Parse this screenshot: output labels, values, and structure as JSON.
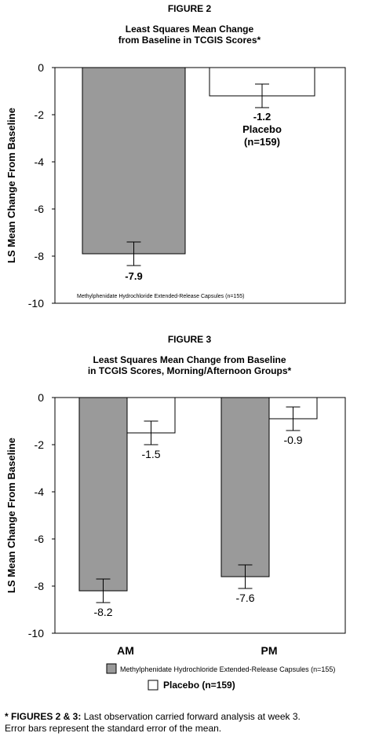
{
  "figure2": {
    "label": "FIGURE 2",
    "title_line1": "Least Squares Mean Change",
    "title_line2": "from Baseline in TCGIS Scores*"
  },
  "figure3": {
    "label": "FIGURE 3",
    "title_line1": "Least Squares Mean Change from Baseline",
    "title_line2": "in TCGIS Scores, Morning/Afternoon Groups*"
  },
  "footnote": {
    "prefix": "* FIGURES 2 & 3:",
    "line1_rest": " Last observation carried forward analysis at week 3.",
    "line2": "Error bars represent the standard error of the mean."
  },
  "colors": {
    "drug": "#9a9a9a",
    "placebo": "#ffffff",
    "stroke": "#000000"
  },
  "chart_data": [
    {
      "type": "bar",
      "title": "Least Squares Mean Change from Baseline in TCGIS Scores*",
      "ylabel": "LS Mean Change From Baseline",
      "ylim": [
        -10,
        0
      ],
      "yticks": [
        "0",
        "-2",
        "-4",
        "-6",
        "-8",
        "-10"
      ],
      "series": [
        {
          "name": "Methylphenidate Hydrochloride Extended-Release Capsules (n=155)",
          "values": [
            -7.9
          ],
          "error": [
            0.5
          ],
          "value_labels": [
            "-7.9"
          ]
        },
        {
          "name": "Placebo",
          "values": [
            -1.2
          ],
          "error": [
            0.5
          ],
          "value_labels": [
            "-1.2"
          ],
          "label_extra": [
            "Placebo",
            "(n=159)"
          ]
        }
      ],
      "grid": false,
      "legend": "inline labels"
    },
    {
      "type": "bar",
      "title": "Least Squares Mean Change from Baseline in TCGIS Scores, Morning/Afternoon Groups*",
      "ylabel": "LS Mean Change From Baseline",
      "ylim": [
        -10,
        0
      ],
      "yticks": [
        "0",
        "-2",
        "-4",
        "-6",
        "-8",
        "-10"
      ],
      "categories": [
        "AM",
        "PM"
      ],
      "series": [
        {
          "name": "Methylphenidate Hydrochloride Extended-Release Capsules (n=155)",
          "values": [
            -8.2,
            -7.6
          ],
          "error": [
            0.5,
            0.5
          ],
          "value_labels": [
            "-8.2",
            "-7.6"
          ]
        },
        {
          "name": "Placebo (n=159)",
          "values": [
            -1.5,
            -0.9
          ],
          "error": [
            0.5,
            0.5
          ],
          "value_labels": [
            "-1.5",
            "-0.9"
          ]
        }
      ],
      "grid": false,
      "legend": "bottom"
    }
  ]
}
